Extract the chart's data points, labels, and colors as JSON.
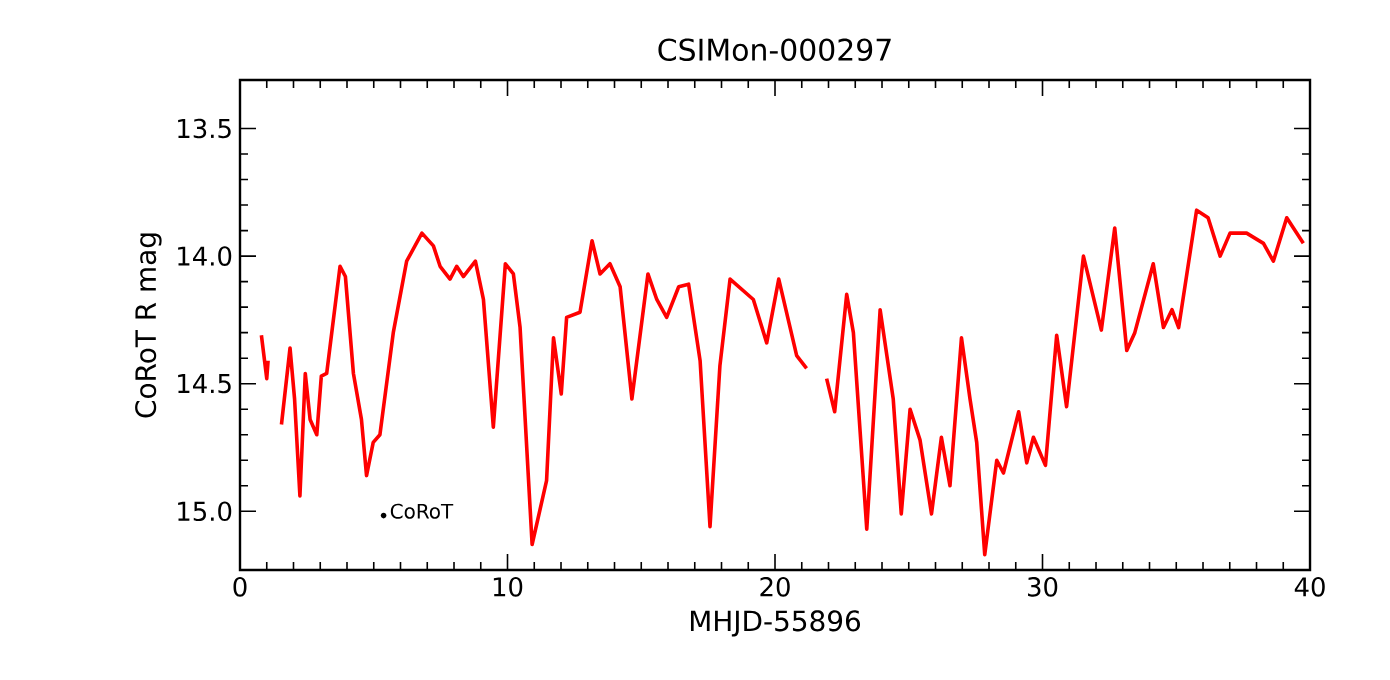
{
  "chart_data": {
    "type": "line",
    "title": "CSIMon-000297",
    "xlabel": "MHJD-55896",
    "ylabel": "CoRoT R mag",
    "xlim": [
      0,
      40
    ],
    "xticks": [
      0,
      10,
      20,
      30,
      40
    ],
    "ylim": [
      15.23,
      13.31
    ],
    "yticks": [
      {
        "value": 13.5,
        "label": "13.5"
      },
      {
        "value": 14.0,
        "label": "14.0"
      },
      {
        "value": 14.5,
        "label": "14.5"
      },
      {
        "value": 15.0,
        "label": "15.0"
      }
    ],
    "annotations": [
      "CoRoT"
    ],
    "x": [
      0.8,
      1.0,
      1.05,
      1.3,
      1.55,
      1.87,
      2.04,
      2.24,
      2.44,
      2.62,
      2.87,
      3.04,
      3.24,
      3.74,
      3.94,
      4.24,
      4.54,
      4.73,
      4.98,
      5.23,
      5.73,
      6.23,
      6.8,
      7.23,
      7.48,
      7.85,
      8.1,
      8.35,
      8.8,
      9.1,
      9.47,
      9.92,
      10.22,
      10.47,
      10.92,
      11.46,
      11.72,
      12.01,
      12.21,
      12.71,
      13.16,
      13.46,
      13.83,
      14.21,
      14.65,
      15.25,
      15.58,
      15.95,
      16.4,
      16.77,
      17.2,
      17.57,
      17.94,
      18.32,
      19.19,
      19.69,
      20.14,
      20.81,
      21.18,
      21.5,
      21.93,
      22.23,
      22.68,
      22.93,
      23.43,
      23.93,
      24.42,
      24.72,
      25.05,
      25.42,
      25.85,
      26.22,
      26.54,
      26.97,
      27.29,
      27.54,
      27.84,
      28.29,
      28.54,
      29.11,
      29.41,
      29.66,
      30.11,
      30.53,
      30.9,
      31.53,
      32.2,
      32.7,
      33.15,
      33.45,
      34.14,
      34.52,
      34.84,
      35.09,
      35.76,
      36.19,
      36.64,
      37.01,
      37.63,
      38.26,
      38.63,
      39.13,
      39.75
    ],
    "series": [
      {
        "color": "#ff0000",
        "values": [
          14.31,
          14.48,
          14.41,
          null,
          14.66,
          14.36,
          14.56,
          14.94,
          14.46,
          14.64,
          14.7,
          14.47,
          14.46,
          14.04,
          14.08,
          14.46,
          14.64,
          14.86,
          14.73,
          14.7,
          14.3,
          14.02,
          13.91,
          13.96,
          14.04,
          14.09,
          14.04,
          14.08,
          14.02,
          14.17,
          14.67,
          14.03,
          14.07,
          14.28,
          15.13,
          14.88,
          14.32,
          14.54,
          14.24,
          14.22,
          13.94,
          14.07,
          14.03,
          14.12,
          14.56,
          14.07,
          14.17,
          14.24,
          14.12,
          14.11,
          14.41,
          15.06,
          14.43,
          14.09,
          14.17,
          14.34,
          14.09,
          14.39,
          14.44,
          null,
          14.48,
          14.61,
          14.15,
          14.3,
          15.07,
          14.21,
          14.56,
          15.01,
          14.6,
          14.72,
          15.01,
          14.71,
          14.9,
          14.32,
          14.56,
          14.73,
          15.17,
          14.8,
          14.85,
          14.61,
          14.81,
          14.71,
          14.82,
          14.31,
          14.59,
          14.0,
          14.29,
          13.89,
          14.37,
          14.3,
          14.03,
          14.28,
          14.21,
          14.28,
          13.82,
          13.85,
          14.0,
          13.91,
          13.91,
          13.95,
          14.02,
          13.85,
          13.95
        ]
      }
    ]
  }
}
